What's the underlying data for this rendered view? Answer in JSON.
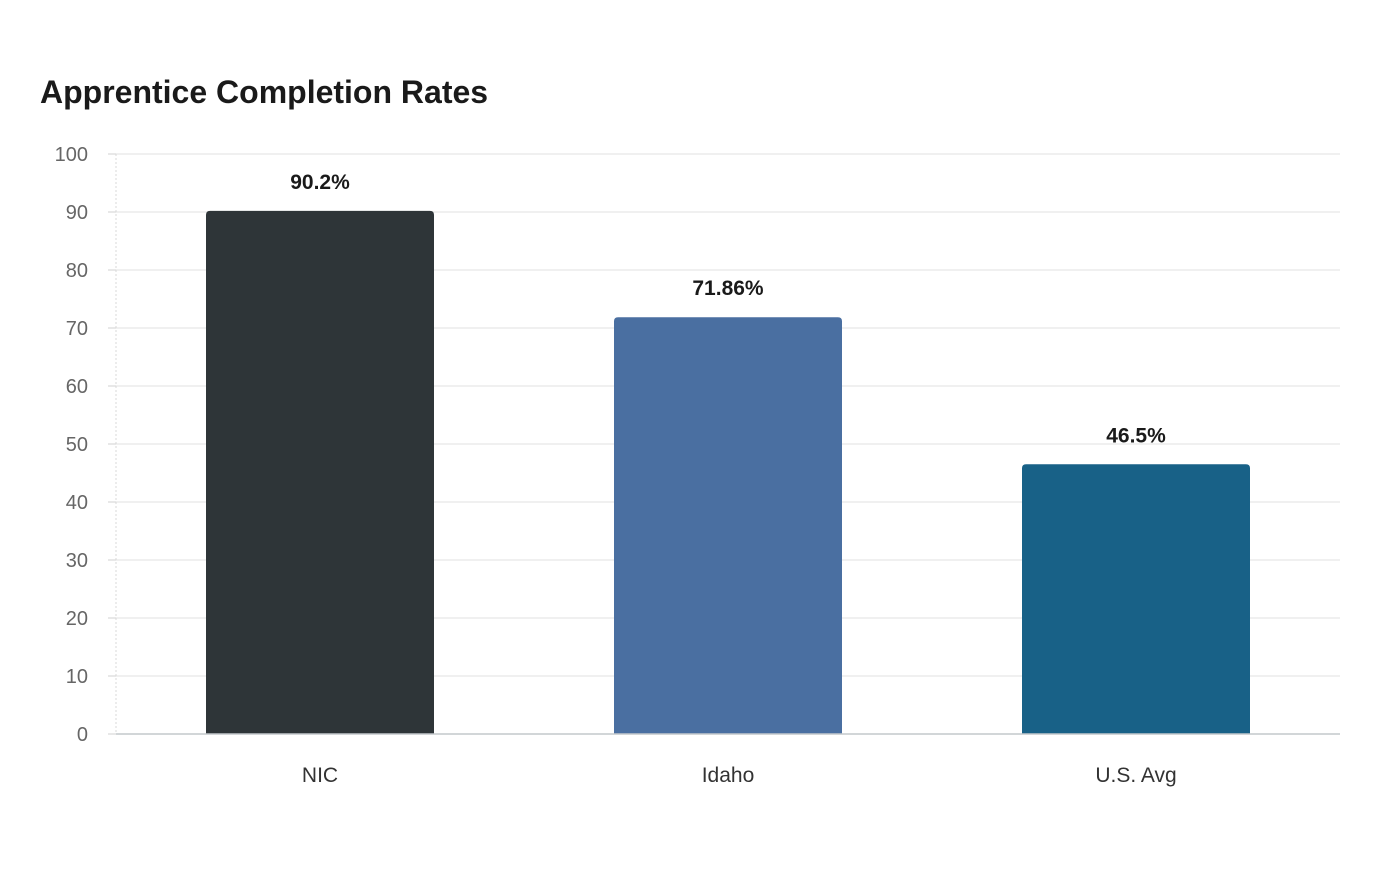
{
  "chart_data": {
    "type": "bar",
    "title": "Apprentice Completion Rates",
    "categories": [
      "NIC",
      "Idaho",
      "U.S. Avg"
    ],
    "values": [
      90.2,
      71.86,
      46.5
    ],
    "value_labels": [
      "90.2%",
      "71.86%",
      "46.5%"
    ],
    "colors": [
      "#2e3538",
      "#4a6fa1",
      "#186187"
    ],
    "xlabel": "",
    "ylabel": "",
    "ylim": [
      0,
      100
    ],
    "yticks": [
      0,
      10,
      20,
      30,
      40,
      50,
      60,
      70,
      80,
      90,
      100
    ],
    "grid": true,
    "legend": "none"
  }
}
